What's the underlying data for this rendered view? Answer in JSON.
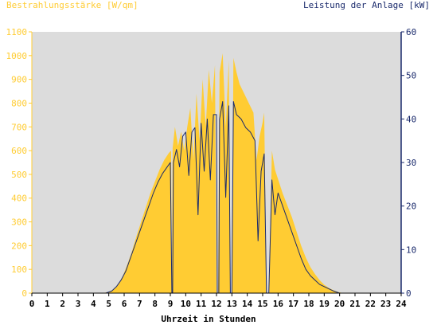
{
  "chart_data": {
    "type": "area",
    "left_axis_label": "Bestrahlungsstärke [W/qm]",
    "right_axis_label": "Leistung der Anlage [kW]",
    "xlabel": "Uhrzeit in Stunden",
    "x_ticks": [
      "0",
      "1",
      "2",
      "3",
      "4",
      "5",
      "6",
      "7",
      "8",
      "9",
      "10",
      "11",
      "12",
      "13",
      "14",
      "15",
      "16",
      "17",
      "18",
      "19",
      "20",
      "21",
      "22",
      "23",
      "24"
    ],
    "y_left_ticks": [
      "0",
      "100",
      "200",
      "300",
      "400",
      "500",
      "600",
      "700",
      "800",
      "900",
      "1000",
      "1100"
    ],
    "y_right_ticks": [
      "0",
      "10",
      "20",
      "30",
      "40",
      "50",
      "60"
    ],
    "xlim": [
      0,
      24
    ],
    "ylim_left": [
      0,
      1100
    ],
    "ylim_right": [
      0,
      60
    ],
    "grid": false,
    "colors": {
      "plot_bg": "#dcdcdc",
      "irradiance": "#ffcc33",
      "power": "#1a2a6c",
      "left_axis": "#ffcc33",
      "right_axis": "#1a2a6c"
    },
    "series": [
      {
        "axis": "left",
        "style": "area",
        "color": "#ffcc33",
        "points": [
          [
            0,
            0
          ],
          [
            4.6,
            0
          ],
          [
            5.0,
            5
          ],
          [
            5.3,
            15
          ],
          [
            5.6,
            35
          ],
          [
            5.9,
            70
          ],
          [
            6.2,
            120
          ],
          [
            6.5,
            175
          ],
          [
            6.8,
            240
          ],
          [
            7.1,
            300
          ],
          [
            7.4,
            360
          ],
          [
            7.7,
            420
          ],
          [
            8.0,
            470
          ],
          [
            8.3,
            520
          ],
          [
            8.6,
            560
          ],
          [
            8.9,
            590
          ],
          [
            9.05,
            600
          ],
          [
            9.1,
            0
          ],
          [
            9.15,
            610
          ],
          [
            9.3,
            700
          ],
          [
            9.5,
            620
          ],
          [
            9.7,
            680
          ],
          [
            9.9,
            600
          ],
          [
            10.1,
            700
          ],
          [
            10.3,
            780
          ],
          [
            10.5,
            560
          ],
          [
            10.7,
            840
          ],
          [
            10.9,
            640
          ],
          [
            11.1,
            900
          ],
          [
            11.3,
            700
          ],
          [
            11.5,
            940
          ],
          [
            11.7,
            800
          ],
          [
            11.9,
            960
          ],
          [
            12.0,
            0
          ],
          [
            12.1,
            0
          ],
          [
            12.2,
            930
          ],
          [
            12.4,
            1010
          ],
          [
            12.6,
            700
          ],
          [
            12.8,
            980
          ],
          [
            12.9,
            0
          ],
          [
            13.0,
            0
          ],
          [
            13.1,
            990
          ],
          [
            13.3,
            930
          ],
          [
            13.5,
            880
          ],
          [
            13.8,
            840
          ],
          [
            14.1,
            800
          ],
          [
            14.4,
            760
          ],
          [
            14.6,
            560
          ],
          [
            14.8,
            660
          ],
          [
            15.0,
            720
          ],
          [
            15.1,
            760
          ],
          [
            15.25,
            0
          ],
          [
            15.4,
            0
          ],
          [
            15.6,
            600
          ],
          [
            15.8,
            520
          ],
          [
            16.0,
            480
          ],
          [
            16.3,
            420
          ],
          [
            16.6,
            370
          ],
          [
            16.9,
            320
          ],
          [
            17.2,
            260
          ],
          [
            17.5,
            200
          ],
          [
            17.8,
            150
          ],
          [
            18.1,
            110
          ],
          [
            18.4,
            80
          ],
          [
            18.7,
            55
          ],
          [
            19.0,
            35
          ],
          [
            19.3,
            22
          ],
          [
            19.6,
            12
          ],
          [
            19.9,
            5
          ],
          [
            20.2,
            0
          ],
          [
            24,
            0
          ]
        ]
      },
      {
        "axis": "right",
        "style": "line",
        "color": "#1a2a6c",
        "points": [
          [
            0,
            0
          ],
          [
            4.8,
            0
          ],
          [
            5.2,
            0.5
          ],
          [
            5.5,
            1.5
          ],
          [
            5.8,
            3
          ],
          [
            6.1,
            5
          ],
          [
            6.4,
            8
          ],
          [
            6.7,
            11
          ],
          [
            7.0,
            14
          ],
          [
            7.3,
            17
          ],
          [
            7.6,
            20
          ],
          [
            7.9,
            23
          ],
          [
            8.2,
            25.5
          ],
          [
            8.5,
            27.5
          ],
          [
            8.8,
            29
          ],
          [
            9.0,
            30
          ],
          [
            9.1,
            0
          ],
          [
            9.15,
            0
          ],
          [
            9.2,
            30
          ],
          [
            9.4,
            33
          ],
          [
            9.6,
            29
          ],
          [
            9.8,
            36
          ],
          [
            10.0,
            37
          ],
          [
            10.2,
            27
          ],
          [
            10.4,
            37
          ],
          [
            10.6,
            38
          ],
          [
            10.8,
            18
          ],
          [
            11.0,
            39
          ],
          [
            11.2,
            28
          ],
          [
            11.4,
            40
          ],
          [
            11.6,
            26
          ],
          [
            11.8,
            41
          ],
          [
            12.0,
            41
          ],
          [
            12.05,
            0
          ],
          [
            12.15,
            0
          ],
          [
            12.2,
            40
          ],
          [
            12.4,
            44
          ],
          [
            12.6,
            22
          ],
          [
            12.8,
            43
          ],
          [
            12.9,
            0
          ],
          [
            13.0,
            0
          ],
          [
            13.1,
            44
          ],
          [
            13.3,
            41
          ],
          [
            13.6,
            40
          ],
          [
            13.9,
            38
          ],
          [
            14.2,
            37
          ],
          [
            14.5,
            35
          ],
          [
            14.7,
            12
          ],
          [
            14.9,
            28
          ],
          [
            15.1,
            32
          ],
          [
            15.25,
            0
          ],
          [
            15.4,
            0
          ],
          [
            15.6,
            26
          ],
          [
            15.8,
            18
          ],
          [
            16.0,
            23
          ],
          [
            16.3,
            20
          ],
          [
            16.6,
            17
          ],
          [
            16.9,
            14
          ],
          [
            17.2,
            11
          ],
          [
            17.5,
            8
          ],
          [
            17.8,
            5.5
          ],
          [
            18.1,
            4
          ],
          [
            18.4,
            3
          ],
          [
            18.7,
            2
          ],
          [
            19.0,
            1.5
          ],
          [
            19.3,
            1
          ],
          [
            19.6,
            0.5
          ],
          [
            20.0,
            0
          ],
          [
            24,
            0
          ]
        ]
      }
    ]
  }
}
